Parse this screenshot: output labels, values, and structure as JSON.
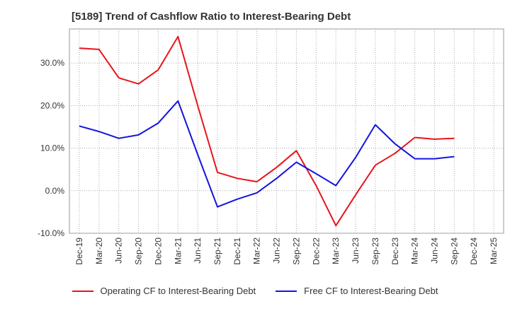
{
  "chart_data": {
    "type": "line",
    "title": "[5189]  Trend of Cashflow Ratio to Interest-Bearing Debt",
    "xlabel": "",
    "ylabel": "",
    "categories": [
      "Dec-19",
      "Mar-20",
      "Jun-20",
      "Sep-20",
      "Dec-20",
      "Mar-21",
      "Jun-21",
      "Sep-21",
      "Dec-21",
      "Mar-22",
      "Jun-22",
      "Sep-22",
      "Dec-22",
      "Mar-23",
      "Jun-23",
      "Sep-23",
      "Dec-23",
      "Mar-24",
      "Jun-24",
      "Sep-24",
      "Dec-24",
      "Mar-25"
    ],
    "ylim": [
      -10,
      38
    ],
    "yticks": [
      -10,
      0,
      10,
      20,
      30
    ],
    "ytick_labels": [
      "-10.0%",
      "0.0%",
      "10.0%",
      "20.0%",
      "30.0%"
    ],
    "grid": true,
    "legend_position": "bottom",
    "series": [
      {
        "name": "Operating CF to Interest-Bearing Debt",
        "color": "#e8141b",
        "values": [
          33.5,
          33.2,
          26.5,
          25.1,
          28.4,
          36.2,
          20.0,
          4.3,
          2.9,
          2.1,
          5.5,
          9.4,
          1.2,
          -8.2,
          -1.0,
          6.0,
          8.8,
          12.5,
          12.1,
          12.3,
          null,
          null
        ]
      },
      {
        "name": "Free CF to Interest-Bearing Debt",
        "color": "#1414e0",
        "values": [
          15.2,
          13.9,
          12.3,
          13.1,
          15.9,
          21.1,
          8.5,
          -3.8,
          -2.0,
          -0.5,
          2.9,
          6.7,
          4.0,
          1.2,
          7.8,
          15.5,
          11.0,
          7.5,
          7.5,
          8.0,
          null,
          null
        ]
      }
    ]
  }
}
